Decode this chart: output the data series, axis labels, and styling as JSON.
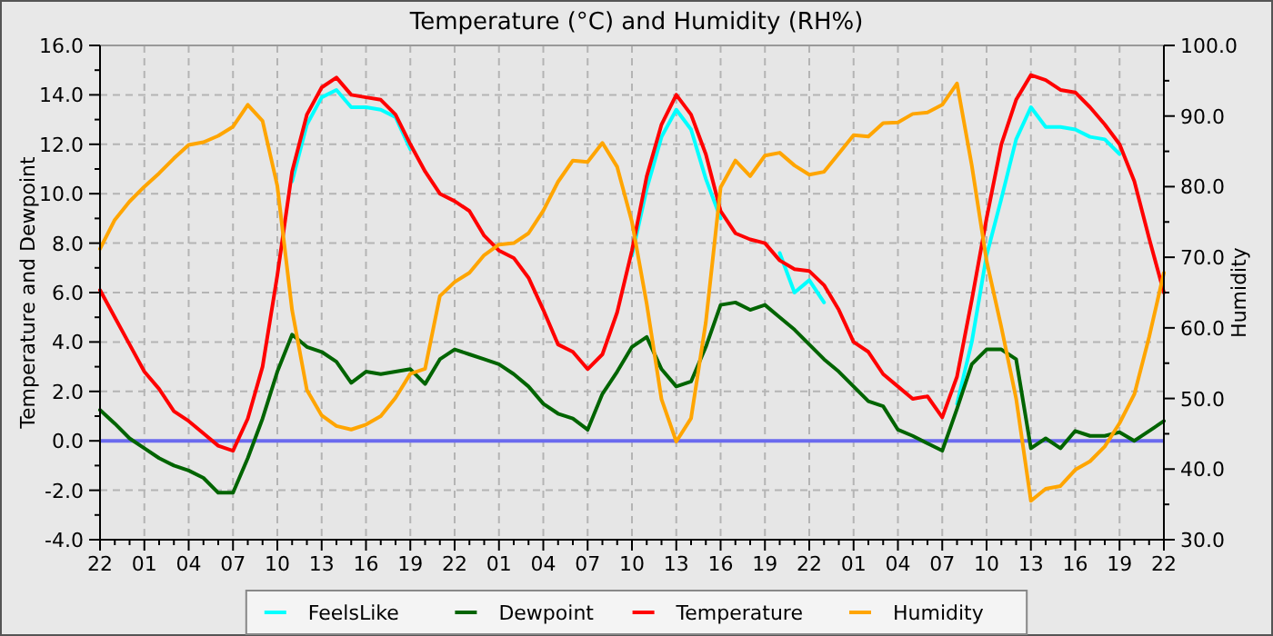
{
  "chart_data": {
    "type": "line",
    "title": "Temperature (°C) and Humidity (RH%)",
    "ylabel": "Temperature and Dewpoint",
    "y2label": "Humidity",
    "categories": [
      "22",
      null,
      null,
      "01",
      null,
      null,
      "04",
      null,
      null,
      "07",
      null,
      null,
      "10",
      null,
      null,
      "13",
      null,
      null,
      "16",
      null,
      null,
      "19",
      null,
      null,
      "22",
      null,
      null,
      "01",
      null,
      null,
      "04",
      null,
      null,
      "07",
      null,
      null,
      "10",
      null,
      null,
      "13",
      null,
      null,
      "16",
      null,
      null,
      "19",
      null,
      null,
      "22",
      null,
      null,
      "01",
      null,
      null,
      "04",
      null,
      null,
      "07",
      null,
      null,
      "10",
      null,
      null,
      "13",
      null,
      null,
      "16",
      null,
      null,
      "19",
      null,
      null,
      "22"
    ],
    "ylim": [
      -4,
      16
    ],
    "yticks": [
      {
        "value": -4,
        "label": "-4.0"
      },
      {
        "value": -2,
        "label": "-2.0"
      },
      {
        "value": 0,
        "label": "0.0"
      },
      {
        "value": 2,
        "label": "2.0"
      },
      {
        "value": 4,
        "label": "4.0"
      },
      {
        "value": 6,
        "label": "6.0"
      },
      {
        "value": 8,
        "label": "8.0"
      },
      {
        "value": 10,
        "label": "10.0"
      },
      {
        "value": 12,
        "label": "12.0"
      },
      {
        "value": 14,
        "label": "14.0"
      },
      {
        "value": 16,
        "label": "16.0"
      }
    ],
    "y2lim": [
      30,
      100
    ],
    "y2ticks": [
      {
        "value": 30,
        "label": "30.0"
      },
      {
        "value": 40,
        "label": "40.0"
      },
      {
        "value": 50,
        "label": "50.0"
      },
      {
        "value": 60,
        "label": "60.0"
      },
      {
        "value": 70,
        "label": "70.0"
      },
      {
        "value": 80,
        "label": "80.0"
      },
      {
        "value": 90,
        "label": "90.0"
      },
      {
        "value": 100,
        "label": "100.0"
      }
    ],
    "grid": true,
    "legend": "bottom",
    "marker": "none",
    "line_style": "solid",
    "ref_lines": [
      {
        "axis": "y",
        "value": 0,
        "color": "#6a6aee"
      }
    ],
    "series": [
      {
        "name": "FeelsLike",
        "color": "#00ffff",
        "values": [
          null,
          null,
          null,
          null,
          null,
          null,
          null,
          null,
          null,
          null,
          null,
          null,
          null,
          10.5,
          12.8,
          13.9,
          14.2,
          13.5,
          13.5,
          13.4,
          13.1,
          11.8,
          null,
          null,
          null,
          null,
          null,
          null,
          null,
          null,
          null,
          null,
          null,
          null,
          null,
          null,
          7.5,
          10.2,
          12.3,
          13.4,
          12.6,
          10.6,
          9.0,
          null,
          null,
          null,
          7.6,
          6.0,
          6.5,
          5.6,
          null,
          null,
          null,
          null,
          null,
          null,
          null,
          null,
          1.5,
          4.0,
          7.5,
          9.8,
          12.2,
          13.5,
          12.7,
          12.7,
          12.6,
          12.3,
          12.2,
          11.6,
          null,
          null,
          null
        ]
      },
      {
        "name": "Dewpoint",
        "color": "#006400",
        "values": [
          1.25,
          0.7,
          0.1,
          -0.3,
          -0.7,
          -1.0,
          -1.2,
          -1.5,
          -2.1,
          -2.1,
          -0.7,
          0.9,
          2.8,
          4.3,
          3.8,
          3.6,
          3.2,
          2.35,
          2.8,
          2.7,
          2.8,
          2.9,
          2.3,
          3.3,
          3.7,
          3.5,
          3.3,
          3.1,
          2.7,
          2.2,
          1.5,
          1.1,
          0.9,
          0.45,
          1.9,
          2.8,
          3.8,
          4.2,
          2.9,
          2.2,
          2.4,
          3.8,
          5.5,
          5.6,
          5.3,
          5.5,
          5.0,
          4.5,
          3.9,
          3.3,
          2.8,
          2.2,
          1.6,
          1.4,
          0.45,
          0.2,
          -0.1,
          -0.4,
          1.3,
          3.1,
          3.7,
          3.7,
          3.3,
          -0.3,
          0.1,
          -0.3,
          0.4,
          0.2,
          0.2,
          0.35,
          0,
          0.4,
          0.8
        ]
      },
      {
        "name": "Temperature",
        "color": "#ff0000",
        "values": [
          6.1,
          5.0,
          3.9,
          2.8,
          2.1,
          1.2,
          0.8,
          0.3,
          -0.2,
          -0.4,
          0.9,
          3.0,
          6.7,
          10.9,
          13.2,
          14.3,
          14.7,
          14.0,
          13.9,
          13.8,
          13.2,
          12.0,
          10.9,
          10.0,
          9.7,
          9.3,
          8.3,
          7.7,
          7.4,
          6.6,
          5.3,
          3.9,
          3.6,
          2.9,
          3.5,
          5.2,
          7.7,
          10.7,
          12.8,
          14.0,
          13.2,
          11.6,
          9.3,
          8.4,
          8.15,
          8.0,
          7.3,
          6.95,
          6.87,
          6.3,
          5.3,
          4.0,
          3.6,
          2.7,
          2.2,
          1.7,
          1.8,
          0.95,
          2.6,
          5.7,
          9.0,
          12.0,
          13.8,
          14.8,
          14.6,
          14.2,
          14.1,
          13.5,
          12.8,
          12.0,
          10.5,
          8.2,
          6.0
        ]
      },
      {
        "name": "Humidity",
        "color": "#ffa500",
        "axis": "y2",
        "values": [
          71.2,
          75.3,
          77.9,
          80.0,
          81.9,
          84.0,
          85.9,
          86.3,
          87.2,
          88.5,
          91.6,
          89.3,
          80.1,
          62.5,
          51.2,
          47.6,
          46.1,
          45.6,
          46.3,
          47.5,
          50.1,
          53.5,
          54.2,
          64.5,
          66.5,
          67.8,
          70.3,
          71.8,
          72.0,
          73.4,
          76.6,
          80.7,
          83.7,
          83.5,
          86.2,
          82.8,
          75.0,
          63.4,
          49.9,
          43.9,
          47.2,
          60.8,
          79.9,
          83.7,
          81.5,
          84.4,
          84.8,
          83.0,
          81.7,
          82.1,
          84.7,
          87.3,
          87.1,
          89.0,
          89.1,
          90.3,
          90.5,
          91.6,
          94.6,
          83.0,
          69.5,
          60.1,
          50.0,
          35.5,
          37.2,
          37.6,
          39.9,
          41.1,
          43.2,
          46.5,
          50.6,
          58.7,
          67.8
        ]
      }
    ]
  }
}
